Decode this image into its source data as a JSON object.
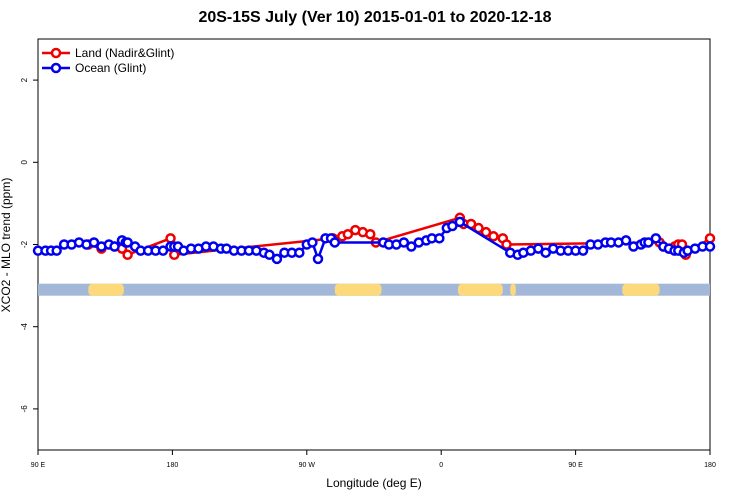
{
  "chart_data": {
    "type": "line",
    "title": "20S-15S July (Ver 10)   2015-01-01 to 2020-12-18",
    "xlabel": "Longitude (deg E)",
    "ylabel": "XCO2 - MLO trend (ppm)",
    "xlim": [
      0,
      360
    ],
    "ylim": [
      -7,
      3
    ],
    "x_ticks": [
      {
        "value": 0,
        "label": "90 E"
      },
      {
        "value": 72,
        "label": "180"
      },
      {
        "value": 144,
        "label": "90 W"
      },
      {
        "value": 216,
        "label": "0"
      },
      {
        "value": 288,
        "label": "90 E"
      },
      {
        "value": 360,
        "label": "180"
      }
    ],
    "y_ticks": [
      -6,
      -4,
      -2,
      0,
      2
    ],
    "grid": false,
    "legend_position": "top-left",
    "colors": {
      "land": "#ee0000",
      "ocean": "#0000ee",
      "land_strip": "#fcd97a",
      "ocean_strip": "#a3b8d9"
    },
    "series": [
      {
        "name": "Land (Nadir&Glint)",
        "color": "#ee0000",
        "x": [
          27,
          34,
          41,
          45,
          48,
          71,
          73,
          158,
          163,
          166,
          170,
          174,
          178,
          181,
          226,
          228,
          232,
          236,
          240,
          244,
          249,
          251,
          333,
          335,
          338,
          341,
          343,
          345,
          347,
          360
        ],
        "y": [
          -2.0,
          -2.1,
          -2.05,
          -2.1,
          -2.25,
          -1.85,
          -2.25,
          -1.85,
          -1.8,
          -1.75,
          -1.65,
          -1.7,
          -1.75,
          -1.95,
          -1.35,
          -1.5,
          -1.5,
          -1.6,
          -1.7,
          -1.8,
          -1.85,
          -2.0,
          -1.95,
          -2.05,
          -2.1,
          -2.05,
          -2.0,
          -2.0,
          -2.25,
          -1.85
        ]
      },
      {
        "name": "Ocean (Glint)",
        "color": "#0000ee",
        "x": [
          0,
          4,
          7,
          10,
          14,
          18,
          22,
          26,
          30,
          34,
          38,
          41,
          45,
          47,
          48,
          52,
          55,
          59,
          63,
          67,
          71,
          73,
          75,
          78,
          82,
          86,
          90,
          94,
          98,
          101,
          105,
          109,
          113,
          117,
          121,
          124,
          128,
          132,
          136,
          140,
          144,
          147,
          150,
          154,
          157,
          159,
          185,
          188,
          192,
          196,
          200,
          204,
          208,
          211,
          215,
          219,
          222,
          226,
          253,
          257,
          260,
          264,
          268,
          272,
          276,
          280,
          284,
          288,
          292,
          296,
          300,
          304,
          307,
          311,
          315,
          319,
          323,
          325,
          327,
          331,
          335,
          338,
          341,
          343,
          346,
          348,
          352,
          356,
          360
        ],
        "y": [
          -2.15,
          -2.15,
          -2.15,
          -2.15,
          -2.0,
          -2.0,
          -1.95,
          -2.0,
          -1.95,
          -2.05,
          -2.0,
          -2.05,
          -1.9,
          -1.95,
          -1.95,
          -2.05,
          -2.15,
          -2.15,
          -2.15,
          -2.15,
          -2.05,
          -2.05,
          -2.05,
          -2.15,
          -2.1,
          -2.1,
          -2.05,
          -2.05,
          -2.1,
          -2.1,
          -2.15,
          -2.15,
          -2.15,
          -2.15,
          -2.2,
          -2.25,
          -2.35,
          -2.2,
          -2.2,
          -2.2,
          -2.0,
          -1.95,
          -2.35,
          -1.85,
          -1.85,
          -1.95,
          -1.95,
          -2.0,
          -2.0,
          -1.95,
          -2.05,
          -1.95,
          -1.9,
          -1.85,
          -1.85,
          -1.6,
          -1.55,
          -1.45,
          -2.2,
          -2.25,
          -2.2,
          -2.15,
          -2.1,
          -2.2,
          -2.1,
          -2.15,
          -2.15,
          -2.15,
          -2.15,
          -2.0,
          -2.0,
          -1.95,
          -1.95,
          -1.95,
          -1.9,
          -2.05,
          -2.0,
          -1.95,
          -1.95,
          -1.85,
          -2.05,
          -2.1,
          -2.15,
          -2.15,
          -2.2,
          -2.15,
          -2.1,
          -2.05,
          -2.05
        ]
      }
    ],
    "surface_strip": {
      "y": -3.1,
      "land_ranges": [
        [
          27,
          46
        ],
        [
          159,
          184
        ],
        [
          225,
          249
        ],
        [
          253,
          256
        ],
        [
          313,
          333
        ]
      ]
    }
  }
}
